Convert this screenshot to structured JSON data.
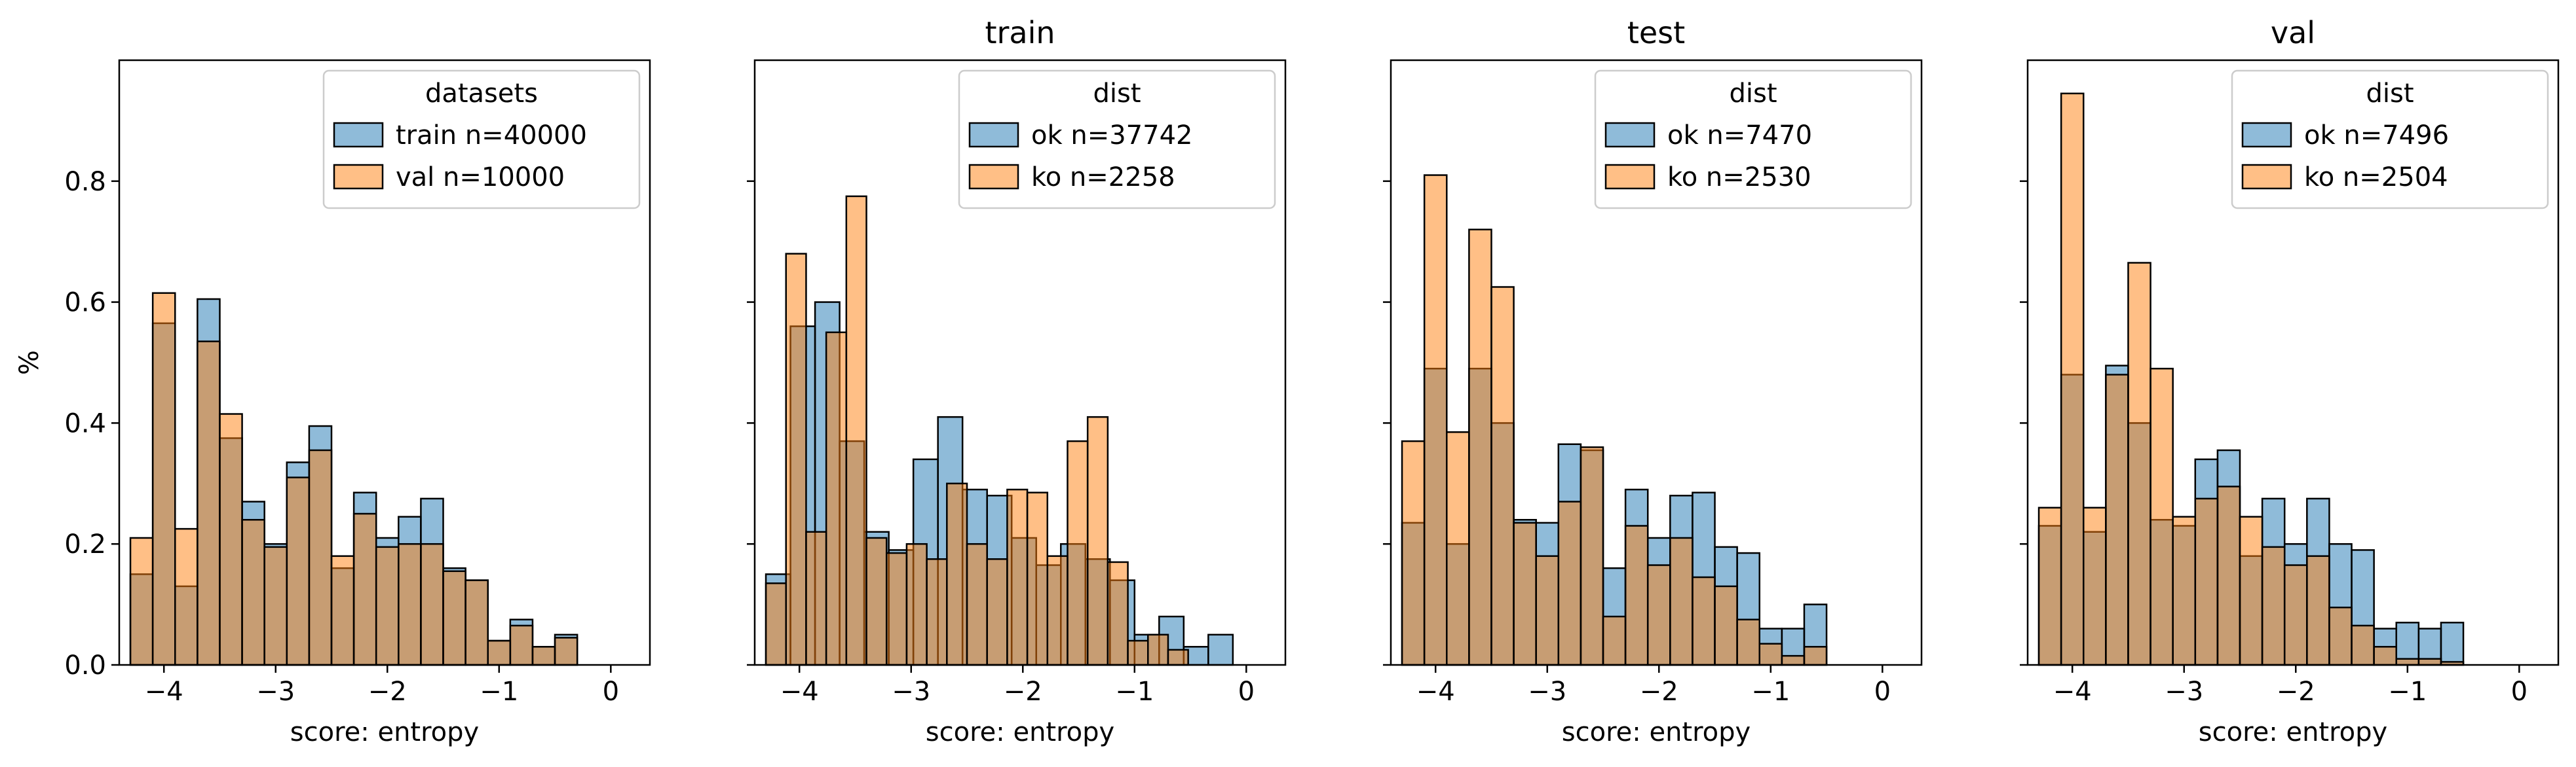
{
  "figure": {
    "shared_ylabel": "%"
  },
  "colors": {
    "blue": "#1f77b4",
    "orange": "#ff7f0e",
    "edge": "#000000"
  },
  "chart_data": [
    {
      "type": "histogram",
      "title": "",
      "xlabel": "score: entropy",
      "ylabel": "%",
      "xlim": [
        -4.4,
        0.35
      ],
      "ylim": [
        0,
        1.0
      ],
      "xticks": [
        -4,
        -3,
        -2,
        -1,
        0
      ],
      "yticks": [
        0.0,
        0.2,
        0.4,
        0.6,
        0.8
      ],
      "show_yticklabels": true,
      "legend": {
        "title": "datasets",
        "placement": "top-right"
      },
      "series": [
        {
          "name": "train n=40000",
          "color": "blue",
          "bins": [
            [
              -4.3,
              -4.1
            ],
            [
              -4.1,
              -3.9
            ],
            [
              -3.9,
              -3.7
            ],
            [
              -3.7,
              -3.5
            ],
            [
              -3.5,
              -3.3
            ],
            [
              -3.3,
              -3.1
            ],
            [
              -3.1,
              -2.9
            ],
            [
              -2.9,
              -2.7
            ],
            [
              -2.7,
              -2.5
            ],
            [
              -2.5,
              -2.3
            ],
            [
              -2.3,
              -2.1
            ],
            [
              -2.1,
              -1.9
            ],
            [
              -1.9,
              -1.7
            ],
            [
              -1.7,
              -1.5
            ],
            [
              -1.5,
              -1.3
            ],
            [
              -1.3,
              -1.1
            ],
            [
              -1.1,
              -0.9
            ],
            [
              -0.9,
              -0.7
            ],
            [
              -0.7,
              -0.5
            ],
            [
              -0.5,
              -0.3
            ],
            [
              -0.3,
              -0.1
            ],
            [
              -0.1,
              0.0
            ]
          ],
          "values": [
            0.15,
            0.565,
            0.13,
            0.605,
            0.375,
            0.27,
            0.2,
            0.335,
            0.395,
            0.16,
            0.285,
            0.21,
            0.245,
            0.275,
            0.16,
            0.14,
            0.04,
            0.075,
            0.03,
            0.05,
            0.0,
            0.0
          ]
        },
        {
          "name": "val n=10000",
          "color": "orange",
          "bins": [
            [
              -4.3,
              -4.1
            ],
            [
              -4.1,
              -3.9
            ],
            [
              -3.9,
              -3.7
            ],
            [
              -3.7,
              -3.5
            ],
            [
              -3.5,
              -3.3
            ],
            [
              -3.3,
              -3.1
            ],
            [
              -3.1,
              -2.9
            ],
            [
              -2.9,
              -2.7
            ],
            [
              -2.7,
              -2.5
            ],
            [
              -2.5,
              -2.3
            ],
            [
              -2.3,
              -2.1
            ],
            [
              -2.1,
              -1.9
            ],
            [
              -1.9,
              -1.7
            ],
            [
              -1.7,
              -1.5
            ],
            [
              -1.5,
              -1.3
            ],
            [
              -1.3,
              -1.1
            ],
            [
              -1.1,
              -0.9
            ],
            [
              -0.9,
              -0.7
            ],
            [
              -0.7,
              -0.5
            ],
            [
              -0.5,
              -0.3
            ],
            [
              -0.3,
              -0.1
            ],
            [
              -0.1,
              0.0
            ]
          ],
          "values": [
            0.21,
            0.615,
            0.225,
            0.535,
            0.415,
            0.24,
            0.195,
            0.31,
            0.355,
            0.18,
            0.25,
            0.195,
            0.2,
            0.2,
            0.155,
            0.14,
            0.04,
            0.065,
            0.03,
            0.045,
            0.0,
            0.0
          ]
        }
      ]
    },
    {
      "type": "histogram",
      "title": "train",
      "xlabel": "score: entropy",
      "ylabel": "",
      "xlim": [
        -4.4,
        0.35
      ],
      "ylim": [
        0,
        1.0
      ],
      "xticks": [
        -4,
        -3,
        -2,
        -1,
        0
      ],
      "yticks": [
        0.0,
        0.2,
        0.4,
        0.6,
        0.8
      ],
      "show_yticklabels": false,
      "legend": {
        "title": "dist",
        "placement": "top-right"
      },
      "series": [
        {
          "name": "ok n=37742",
          "color": "blue",
          "bins": [
            [
              -4.3,
              -4.08
            ],
            [
              -4.08,
              -3.86
            ],
            [
              -3.86,
              -3.64
            ],
            [
              -3.64,
              -3.42
            ],
            [
              -3.42,
              -3.2
            ],
            [
              -3.2,
              -2.98
            ],
            [
              -2.98,
              -2.76
            ],
            [
              -2.76,
              -2.54
            ],
            [
              -2.54,
              -2.32
            ],
            [
              -2.32,
              -2.1
            ],
            [
              -2.1,
              -1.88
            ],
            [
              -1.88,
              -1.66
            ],
            [
              -1.66,
              -1.44
            ],
            [
              -1.44,
              -1.22
            ],
            [
              -1.22,
              -1.0
            ],
            [
              -1.0,
              -0.78
            ],
            [
              -0.78,
              -0.56
            ],
            [
              -0.56,
              -0.34
            ],
            [
              -0.34,
              -0.12
            ],
            [
              -0.12,
              0.0
            ]
          ],
          "values": [
            0.15,
            0.56,
            0.6,
            0.37,
            0.22,
            0.19,
            0.34,
            0.41,
            0.29,
            0.28,
            0.21,
            0.165,
            0.2,
            0.175,
            0.14,
            0.05,
            0.08,
            0.03,
            0.05,
            0.0
          ]
        },
        {
          "name": "ko n=2258",
          "color": "orange",
          "bins": [
            [
              -4.3,
              -4.12
            ],
            [
              -4.12,
              -3.94
            ],
            [
              -3.94,
              -3.76
            ],
            [
              -3.76,
              -3.58
            ],
            [
              -3.58,
              -3.4
            ],
            [
              -3.4,
              -3.22
            ],
            [
              -3.22,
              -3.04
            ],
            [
              -3.04,
              -2.86
            ],
            [
              -2.86,
              -2.68
            ],
            [
              -2.68,
              -2.5
            ],
            [
              -2.5,
              -2.32
            ],
            [
              -2.32,
              -2.14
            ],
            [
              -2.14,
              -1.96
            ],
            [
              -1.96,
              -1.78
            ],
            [
              -1.78,
              -1.6
            ],
            [
              -1.6,
              -1.42
            ],
            [
              -1.42,
              -1.24
            ],
            [
              -1.24,
              -1.06
            ],
            [
              -1.06,
              -0.88
            ],
            [
              -0.88,
              -0.7
            ],
            [
              -0.7,
              -0.52
            ],
            [
              -0.52,
              -0.34
            ]
          ],
          "values": [
            0.135,
            0.68,
            0.22,
            0.55,
            0.775,
            0.21,
            0.185,
            0.2,
            0.175,
            0.3,
            0.2,
            0.175,
            0.29,
            0.285,
            0.18,
            0.37,
            0.41,
            0.17,
            0.04,
            0.05,
            0.025,
            0.0
          ]
        }
      ]
    },
    {
      "type": "histogram",
      "title": "test",
      "xlabel": "score: entropy",
      "ylabel": "",
      "xlim": [
        -4.4,
        0.35
      ],
      "ylim": [
        0,
        1.0
      ],
      "xticks": [
        -4,
        -3,
        -2,
        -1,
        0
      ],
      "yticks": [
        0.0,
        0.2,
        0.4,
        0.6,
        0.8
      ],
      "show_yticklabels": false,
      "legend": {
        "title": "dist",
        "placement": "top-right"
      },
      "series": [
        {
          "name": "ok n=7470",
          "color": "blue",
          "bins": [
            [
              -4.3,
              -4.1
            ],
            [
              -4.1,
              -3.9
            ],
            [
              -3.9,
              -3.7
            ],
            [
              -3.7,
              -3.5
            ],
            [
              -3.5,
              -3.3
            ],
            [
              -3.3,
              -3.1
            ],
            [
              -3.1,
              -2.9
            ],
            [
              -2.9,
              -2.7
            ],
            [
              -2.7,
              -2.5
            ],
            [
              -2.5,
              -2.3
            ],
            [
              -2.3,
              -2.1
            ],
            [
              -2.1,
              -1.9
            ],
            [
              -1.9,
              -1.7
            ],
            [
              -1.7,
              -1.5
            ],
            [
              -1.5,
              -1.3
            ],
            [
              -1.3,
              -1.1
            ],
            [
              -1.1,
              -0.9
            ],
            [
              -0.9,
              -0.7
            ],
            [
              -0.7,
              -0.5
            ],
            [
              -0.5,
              -0.3
            ],
            [
              -0.3,
              -0.1
            ],
            [
              -0.1,
              0.0
            ]
          ],
          "values": [
            0.235,
            0.49,
            0.2,
            0.49,
            0.4,
            0.24,
            0.235,
            0.365,
            0.355,
            0.16,
            0.29,
            0.21,
            0.28,
            0.285,
            0.195,
            0.185,
            0.06,
            0.06,
            0.1,
            0.0,
            0.0,
            0.0
          ]
        },
        {
          "name": "ko n=2530",
          "color": "orange",
          "bins": [
            [
              -4.3,
              -4.1
            ],
            [
              -4.1,
              -3.9
            ],
            [
              -3.9,
              -3.7
            ],
            [
              -3.7,
              -3.5
            ],
            [
              -3.5,
              -3.3
            ],
            [
              -3.3,
              -3.1
            ],
            [
              -3.1,
              -2.9
            ],
            [
              -2.9,
              -2.7
            ],
            [
              -2.7,
              -2.5
            ],
            [
              -2.5,
              -2.3
            ],
            [
              -2.3,
              -2.1
            ],
            [
              -2.1,
              -1.9
            ],
            [
              -1.9,
              -1.7
            ],
            [
              -1.7,
              -1.5
            ],
            [
              -1.5,
              -1.3
            ],
            [
              -1.3,
              -1.1
            ],
            [
              -1.1,
              -0.9
            ],
            [
              -0.9,
              -0.7
            ],
            [
              -0.7,
              -0.5
            ],
            [
              -0.5,
              -0.3
            ],
            [
              -0.3,
              -0.1
            ],
            [
              -0.1,
              0.0
            ]
          ],
          "values": [
            0.37,
            0.81,
            0.385,
            0.72,
            0.625,
            0.235,
            0.18,
            0.27,
            0.36,
            0.08,
            0.23,
            0.165,
            0.21,
            0.145,
            0.13,
            0.075,
            0.035,
            0.015,
            0.03,
            0.0,
            0.0,
            0.0
          ]
        }
      ]
    },
    {
      "type": "histogram",
      "title": "val",
      "xlabel": "score: entropy",
      "ylabel": "",
      "xlim": [
        -4.4,
        0.35
      ],
      "ylim": [
        0,
        1.0
      ],
      "xticks": [
        -4,
        -3,
        -2,
        -1,
        0
      ],
      "yticks": [
        0.0,
        0.2,
        0.4,
        0.6,
        0.8
      ],
      "show_yticklabels": false,
      "legend": {
        "title": "dist",
        "placement": "top-right"
      },
      "series": [
        {
          "name": "ok n=7496",
          "color": "blue",
          "bins": [
            [
              -4.3,
              -4.1
            ],
            [
              -4.1,
              -3.9
            ],
            [
              -3.9,
              -3.7
            ],
            [
              -3.7,
              -3.5
            ],
            [
              -3.5,
              -3.3
            ],
            [
              -3.3,
              -3.1
            ],
            [
              -3.1,
              -2.9
            ],
            [
              -2.9,
              -2.7
            ],
            [
              -2.7,
              -2.5
            ],
            [
              -2.5,
              -2.3
            ],
            [
              -2.3,
              -2.1
            ],
            [
              -2.1,
              -1.9
            ],
            [
              -1.9,
              -1.7
            ],
            [
              -1.7,
              -1.5
            ],
            [
              -1.5,
              -1.3
            ],
            [
              -1.3,
              -1.1
            ],
            [
              -1.1,
              -0.9
            ],
            [
              -0.9,
              -0.7
            ],
            [
              -0.7,
              -0.5
            ],
            [
              -0.5,
              -0.3
            ],
            [
              -0.3,
              -0.1
            ],
            [
              -0.1,
              0.0
            ]
          ],
          "values": [
            0.23,
            0.48,
            0.22,
            0.495,
            0.4,
            0.24,
            0.23,
            0.34,
            0.355,
            0.18,
            0.275,
            0.2,
            0.275,
            0.2,
            0.19,
            0.06,
            0.07,
            0.06,
            0.07,
            0.0,
            0.0,
            0.0
          ]
        },
        {
          "name": "ko n=2504",
          "color": "orange",
          "bins": [
            [
              -4.3,
              -4.1
            ],
            [
              -4.1,
              -3.9
            ],
            [
              -3.9,
              -3.7
            ],
            [
              -3.7,
              -3.5
            ],
            [
              -3.5,
              -3.3
            ],
            [
              -3.3,
              -3.1
            ],
            [
              -3.1,
              -2.9
            ],
            [
              -2.9,
              -2.7
            ],
            [
              -2.7,
              -2.5
            ],
            [
              -2.5,
              -2.3
            ],
            [
              -2.3,
              -2.1
            ],
            [
              -2.1,
              -1.9
            ],
            [
              -1.9,
              -1.7
            ],
            [
              -1.7,
              -1.5
            ],
            [
              -1.5,
              -1.3
            ],
            [
              -1.3,
              -1.1
            ],
            [
              -1.1,
              -0.9
            ],
            [
              -0.9,
              -0.7
            ],
            [
              -0.7,
              -0.5
            ],
            [
              -0.5,
              -0.3
            ],
            [
              -0.3,
              -0.1
            ],
            [
              -0.1,
              0.0
            ]
          ],
          "values": [
            0.26,
            0.945,
            0.26,
            0.48,
            0.665,
            0.49,
            0.245,
            0.275,
            0.295,
            0.245,
            0.195,
            0.165,
            0.18,
            0.095,
            0.065,
            0.03,
            0.01,
            0.01,
            0.005,
            0.0,
            0.0,
            0.0
          ]
        }
      ]
    }
  ]
}
